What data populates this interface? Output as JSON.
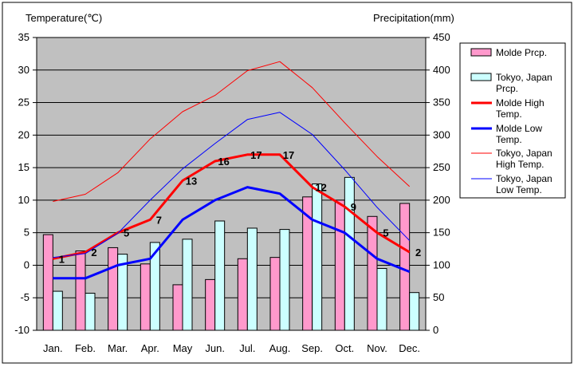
{
  "chart_data": {
    "type": "bar",
    "y_left_label": "Temperature(℃)",
    "y_right_label": "Precipitation(mm)",
    "categories": [
      "Jan.",
      "Feb.",
      "Mar.",
      "Apr.",
      "May",
      "Jun.",
      "Jul.",
      "Aug.",
      "Sep.",
      "Oct.",
      "Nov.",
      "Dec."
    ],
    "ylim_left": [
      -10,
      35
    ],
    "yticks_left": [
      "-10",
      "-5",
      "0",
      "5",
      "10",
      "15",
      "20",
      "25",
      "30",
      "35"
    ],
    "ylim_right": [
      0,
      450
    ],
    "yticks_right": [
      "0",
      "50",
      "100",
      "150",
      "200",
      "250",
      "300",
      "350",
      "400",
      "450"
    ],
    "grid": true,
    "legend_position": "right",
    "colors": {
      "plot_bg": "#c0c0c0",
      "molde_prcp": "#ff99cc",
      "tokyo_prcp": "#ccffff",
      "molde_high": "#ff0000",
      "molde_low": "#0000ff",
      "tokyo_high": "#ff0000",
      "tokyo_low": "#0000ff"
    },
    "series": [
      {
        "name": "Molde Prcp.",
        "kind": "bar",
        "axis": "right",
        "values": [
          147,
          122,
          127,
          102,
          70,
          78,
          110,
          112,
          205,
          200,
          175,
          195
        ]
      },
      {
        "name": "Tokyo, Japan Prcp.",
        "kind": "bar",
        "axis": "right",
        "values": [
          60,
          57,
          117,
          135,
          140,
          168,
          157,
          155,
          225,
          235,
          95,
          58
        ]
      },
      {
        "name": "Molde High Temp.",
        "kind": "line",
        "axis": "left",
        "values": [
          1,
          2,
          5,
          7,
          13,
          16,
          17,
          17,
          12,
          9,
          5,
          2
        ],
        "labels": [
          "1",
          "2",
          "5",
          "7",
          "13",
          "16",
          "17",
          "17",
          "12",
          "9",
          "5",
          "2"
        ]
      },
      {
        "name": "Molde Low Temp.",
        "kind": "line",
        "axis": "left",
        "values": [
          -2,
          -2,
          0,
          1,
          7,
          10,
          12,
          11,
          7,
          5,
          1,
          -1
        ]
      },
      {
        "name": "Tokyo, Japan High Temp.",
        "kind": "line",
        "axis": "left",
        "values": [
          9.8,
          10.9,
          14.2,
          19.4,
          23.6,
          26.1,
          29.9,
          31.3,
          27.3,
          21.9,
          16.7,
          12.1
        ]
      },
      {
        "name": "Tokyo, Japan Low Temp.",
        "kind": "line",
        "axis": "left",
        "values": [
          1.2,
          1.8,
          4.9,
          10.0,
          14.8,
          18.7,
          22.4,
          23.5,
          20.1,
          14.7,
          8.9,
          3.8
        ]
      }
    ]
  }
}
